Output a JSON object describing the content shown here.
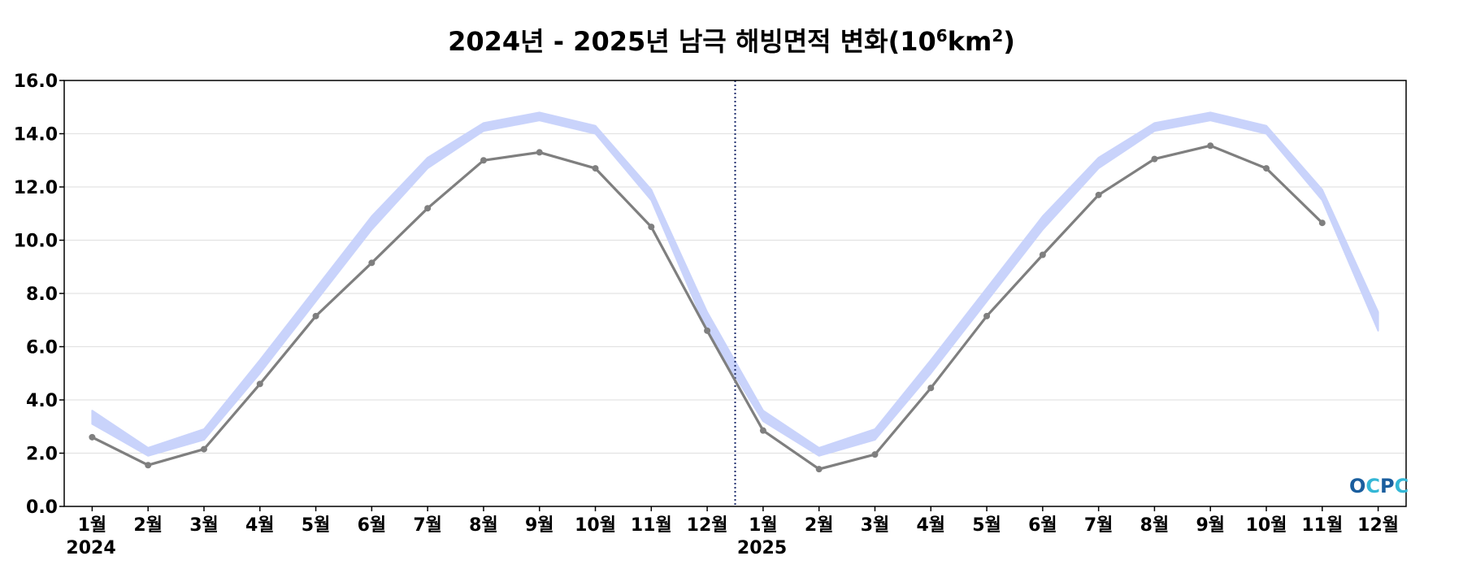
{
  "chart_data": {
    "type": "line",
    "title": "2024년 - 2025년 남극 해빙면적 변화(10⁶km²)",
    "title_parts": {
      "prefix": "2024년 - 2025년 남극 해빙면적 변화(10",
      "exp1": "6",
      "mid": "km",
      "exp2": "2",
      "suffix": ")"
    },
    "xlabel": "",
    "ylabel": "",
    "ylim": [
      0,
      16
    ],
    "yticks": [
      "0.0",
      "2.0",
      "4.0",
      "6.0",
      "8.0",
      "10.0",
      "12.0",
      "14.0",
      "16.0"
    ],
    "yticks_values": [
      0,
      2,
      4,
      6,
      8,
      10,
      12,
      14,
      16
    ],
    "categories": [
      "1월",
      "2월",
      "3월",
      "4월",
      "5월",
      "6월",
      "7월",
      "8월",
      "9월",
      "10월",
      "11월",
      "12월",
      "1월",
      "2월",
      "3월",
      "4월",
      "5월",
      "6월",
      "7월",
      "8월",
      "9월",
      "10월",
      "11월",
      "12월"
    ],
    "year_labels": [
      {
        "text": "2024",
        "index": 0
      },
      {
        "text": "2025",
        "index": 12
      }
    ],
    "divider_after_index": 11,
    "grid": true,
    "series": [
      {
        "kind": "band",
        "color": "#c9d3fb",
        "lower": [
          3.1,
          1.9,
          2.5,
          5.0,
          7.7,
          10.4,
          12.7,
          14.1,
          14.5,
          14.0,
          11.5,
          6.6,
          3.2,
          1.9,
          2.5,
          5.0,
          7.7,
          10.4,
          12.7,
          14.1,
          14.5,
          14.0,
          11.5,
          6.6
        ],
        "upper": [
          3.6,
          2.2,
          2.9,
          5.5,
          8.2,
          10.9,
          13.1,
          14.4,
          14.8,
          14.3,
          11.9,
          7.3,
          3.6,
          2.2,
          2.9,
          5.5,
          8.2,
          10.9,
          13.1,
          14.4,
          14.8,
          14.3,
          11.9,
          7.3
        ]
      },
      {
        "kind": "line",
        "color": "#7f7f7f",
        "values": [
          2.6,
          1.55,
          2.15,
          4.6,
          7.15,
          9.15,
          11.2,
          13.0,
          13.3,
          12.7,
          10.5,
          6.6,
          2.85,
          1.4,
          1.95,
          4.45,
          7.15,
          9.45,
          11.7,
          13.05,
          13.55,
          12.7,
          10.65,
          null
        ]
      }
    ],
    "colors": {
      "divider": "#1f2f6f",
      "grid": "#e3e3e3",
      "axis": "#000000"
    }
  },
  "logo": {
    "text": "OCPC",
    "colors": [
      "#1a5e9e",
      "#34b7d6"
    ]
  }
}
